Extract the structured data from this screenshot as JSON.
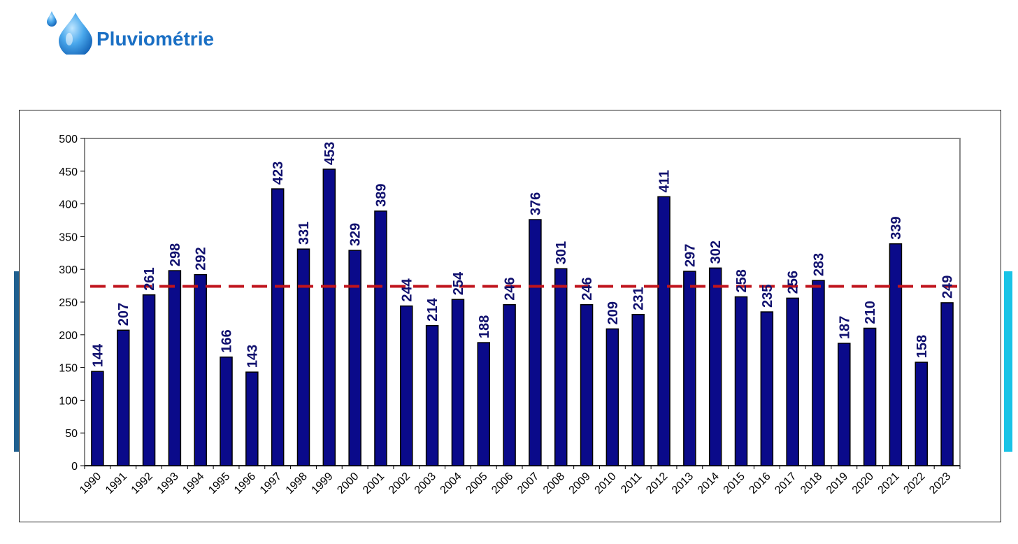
{
  "header": {
    "title": "Pluviométrie",
    "icon": "water-drop-icon"
  },
  "colors": {
    "bar": "#0a0a8a",
    "bar_border": "#000000",
    "average_line": "#c0141c",
    "title": "#1a6fc4",
    "data_label": "#10106e"
  },
  "chart_data": {
    "type": "bar",
    "title": "",
    "xlabel": "",
    "ylabel": "",
    "ylim": [
      0,
      500
    ],
    "yticks": [
      0,
      50,
      100,
      150,
      200,
      250,
      300,
      350,
      400,
      450,
      500
    ],
    "categories": [
      "1990",
      "1991",
      "1992",
      "1993",
      "1994",
      "1995",
      "1996",
      "1997",
      "1998",
      "1999",
      "2000",
      "2001",
      "2002",
      "2003",
      "2004",
      "2005",
      "2006",
      "2007",
      "2008",
      "2009",
      "2010",
      "2011",
      "2012",
      "2013",
      "2014",
      "2015",
      "2016",
      "2017",
      "2018",
      "2019",
      "2020",
      "2021",
      "2022",
      "2023"
    ],
    "values": [
      144,
      207,
      261,
      298,
      292,
      166,
      143,
      423,
      331,
      453,
      329,
      389,
      244,
      214,
      254,
      188,
      246,
      376,
      301,
      246,
      209,
      231,
      411,
      297,
      302,
      258,
      235,
      256,
      283,
      187,
      210,
      339,
      158,
      249
    ],
    "reference_line": {
      "value": 274,
      "style": "dashed"
    },
    "grid": false,
    "legend": "none"
  }
}
